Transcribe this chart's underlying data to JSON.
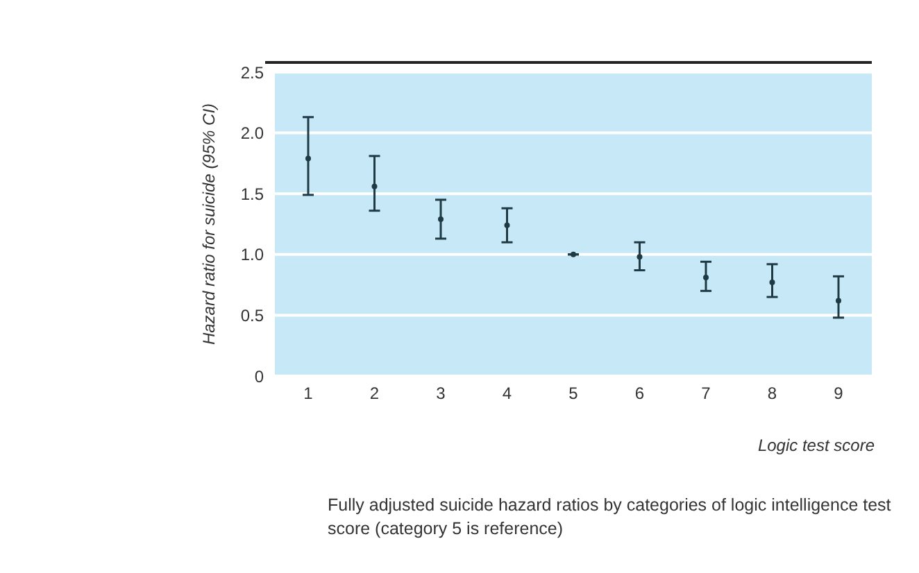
{
  "chart_data": {
    "type": "scatter",
    "categories": [
      "1",
      "2",
      "3",
      "4",
      "5",
      "6",
      "7",
      "8",
      "9"
    ],
    "values": [
      1.79,
      1.56,
      1.29,
      1.24,
      1.0,
      0.98,
      0.81,
      0.77,
      0.62
    ],
    "errors": [
      [
        1.49,
        2.13
      ],
      [
        1.36,
        1.81
      ],
      [
        1.13,
        1.45
      ],
      [
        1.1,
        1.38
      ],
      null,
      [
        0.87,
        1.1
      ],
      [
        0.7,
        0.94
      ],
      [
        0.65,
        0.92
      ],
      [
        0.48,
        0.82
      ]
    ],
    "color": "#1f3a44",
    "ylim": [
      0,
      2.5
    ],
    "yticks": [
      {
        "value": 0,
        "label": "0"
      },
      {
        "value": 0.5,
        "label": "0.5"
      },
      {
        "value": 1,
        "label": "1.0"
      },
      {
        "value": 1.5,
        "label": "1.5"
      },
      {
        "value": 2,
        "label": "2.0"
      },
      {
        "value": 2.5,
        "label": "2.5"
      }
    ],
    "ylabel": "Hazard ratio for suicide (95% CI)",
    "xlabel": "Logic test score",
    "annotations": [
      "Fully adjusted suicide hazard ratios by categories of logic intelligence test score (category 5 is reference)"
    ],
    "grid": "y",
    "marker": "circle"
  }
}
